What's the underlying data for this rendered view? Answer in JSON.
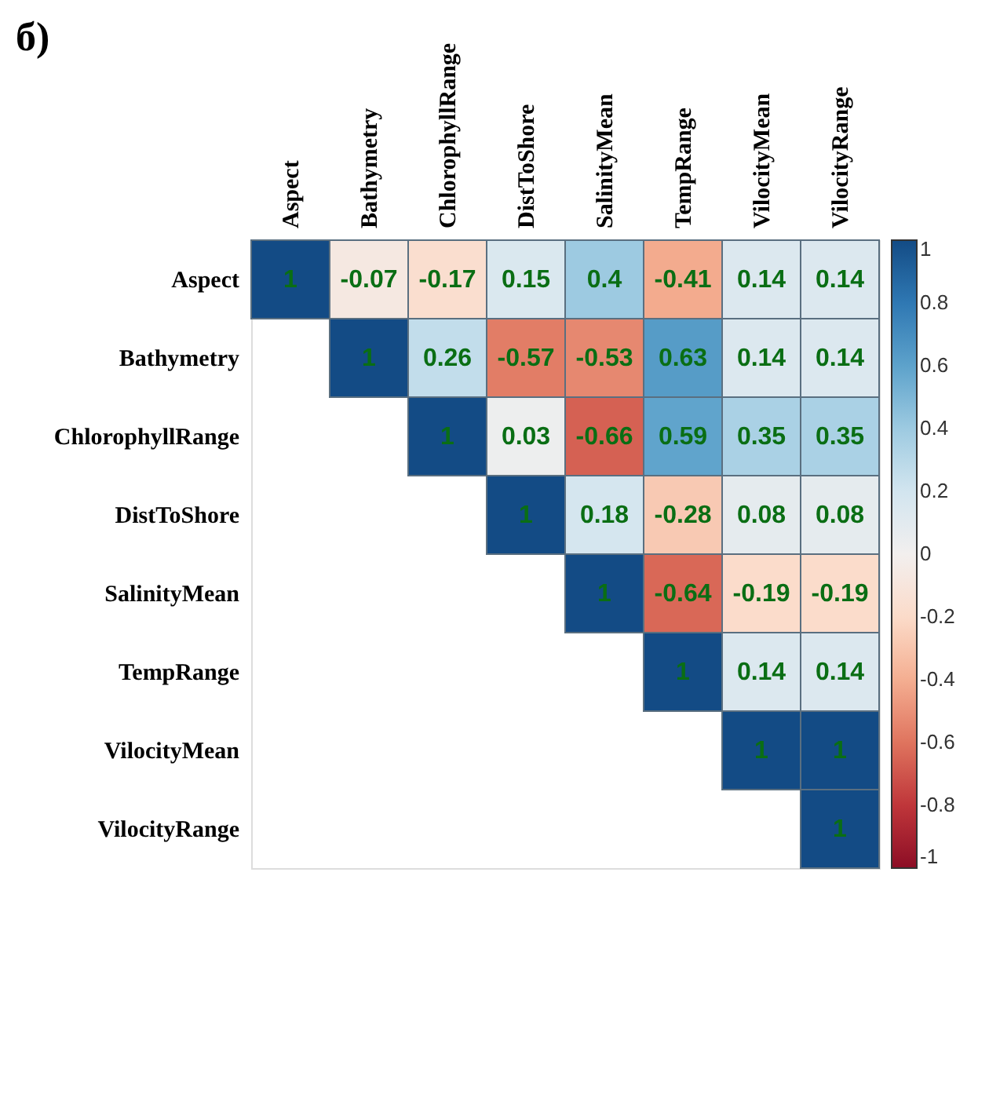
{
  "chart_data": {
    "type": "heatmap",
    "title": "б)",
    "categories": [
      "Aspect",
      "Bathymetry",
      "ChlorophyllRange",
      "DistToShore",
      "SalinityMean",
      "TempRange",
      "VilocityMean",
      "VilocityRange"
    ],
    "y_categories": [
      "Aspect",
      "Bathymetry",
      "ChlorophyllRange",
      "DistToShore",
      "SalinityMean",
      "TempRange",
      "VilocityMean",
      "VilocityRange"
    ],
    "cells": [
      [
        1,
        -0.07,
        -0.17,
        0.15,
        0.4,
        -0.41,
        0.14,
        0.14
      ],
      [
        null,
        1,
        0.26,
        -0.57,
        -0.53,
        0.63,
        0.14,
        0.14
      ],
      [
        null,
        null,
        1,
        0.03,
        -0.66,
        0.59,
        0.35,
        0.35
      ],
      [
        null,
        null,
        null,
        1,
        0.18,
        -0.28,
        0.08,
        0.08
      ],
      [
        null,
        null,
        null,
        null,
        1,
        -0.64,
        -0.19,
        -0.19
      ],
      [
        null,
        null,
        null,
        null,
        null,
        1,
        0.14,
        0.14
      ],
      [
        null,
        null,
        null,
        null,
        null,
        null,
        1,
        1
      ],
      [
        null,
        null,
        null,
        null,
        null,
        null,
        null,
        1
      ]
    ],
    "data_labels": true,
    "clim": [
      -1,
      1
    ],
    "cticks": [
      1,
      0.8,
      0.6,
      0.4,
      0.2,
      0,
      -0.2,
      -0.4,
      -0.6,
      -0.8,
      -1
    ]
  }
}
